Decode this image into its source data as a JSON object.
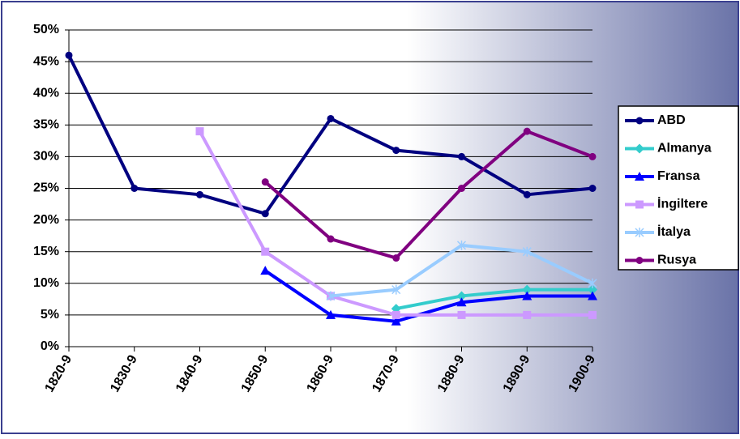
{
  "chart_data": {
    "type": "line",
    "categories": [
      "1820-9",
      "1830-9",
      "1840-9",
      "1850-9",
      "1860-9",
      "1870-9",
      "1880-9",
      "1890-9",
      "1900-9"
    ],
    "series": [
      {
        "name": "ABD",
        "color": "#000080",
        "marker": "circle",
        "values": [
          46,
          25,
          24,
          21,
          36,
          31,
          30,
          24,
          25
        ]
      },
      {
        "name": "Almanya",
        "color": "#33cccc",
        "marker": "diamond",
        "values": [
          null,
          null,
          null,
          null,
          null,
          6,
          8,
          9,
          9
        ]
      },
      {
        "name": "Fransa",
        "color": "#0000ff",
        "marker": "triangle",
        "values": [
          null,
          null,
          null,
          12,
          5,
          4,
          7,
          8,
          8
        ]
      },
      {
        "name": "İngiltere",
        "color": "#cc99ff",
        "marker": "square",
        "values": [
          null,
          null,
          34,
          15,
          8,
          5,
          5,
          5,
          5
        ]
      },
      {
        "name": "İtalya",
        "color": "#99ccff",
        "marker": "star",
        "values": [
          null,
          null,
          null,
          null,
          8,
          9,
          16,
          15,
          10
        ]
      },
      {
        "name": "Rusya",
        "color": "#800080",
        "marker": "circle",
        "values": [
          null,
          null,
          null,
          26,
          17,
          14,
          25,
          34,
          30
        ]
      }
    ],
    "ylim": [
      0,
      50
    ],
    "yticks": [
      {
        "value": 0,
        "label": "0%"
      },
      {
        "value": 5,
        "label": "5%"
      },
      {
        "value": 10,
        "label": "10%"
      },
      {
        "value": 15,
        "label": "15%"
      },
      {
        "value": 20,
        "label": "20%"
      },
      {
        "value": 25,
        "label": "25%"
      },
      {
        "value": 30,
        "label": "30%"
      },
      {
        "value": 35,
        "label": "35%"
      },
      {
        "value": 40,
        "label": "40%"
      },
      {
        "value": 45,
        "label": "45%"
      },
      {
        "value": 50,
        "label": "50%"
      }
    ],
    "grid": true,
    "legend": "right"
  }
}
